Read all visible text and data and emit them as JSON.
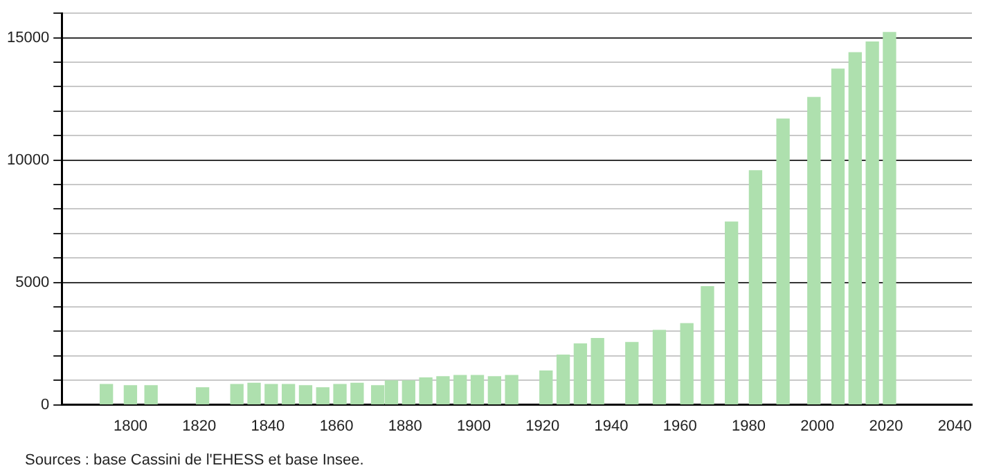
{
  "chart_data": {
    "type": "bar",
    "x": [
      1793,
      1800,
      1806,
      1821,
      1831,
      1836,
      1841,
      1846,
      1851,
      1856,
      1861,
      1866,
      1872,
      1876,
      1881,
      1886,
      1891,
      1896,
      1901,
      1906,
      1911,
      1921,
      1926,
      1931,
      1936,
      1946,
      1954,
      1962,
      1968,
      1975,
      1982,
      1990,
      1999,
      2006,
      2011,
      2016,
      2021
    ],
    "values": [
      830,
      780,
      780,
      700,
      830,
      880,
      830,
      830,
      780,
      700,
      830,
      880,
      780,
      980,
      980,
      1100,
      1150,
      1200,
      1200,
      1150,
      1200,
      1380,
      2030,
      2490,
      2710,
      2550,
      3040,
      3320,
      4830,
      7470,
      9570,
      11680,
      12560,
      13720,
      14390,
      14830,
      15220
    ],
    "color": "#aee0ae",
    "xlim": [
      1780,
      2045
    ],
    "xticks": [
      1800,
      1820,
      1840,
      1860,
      1880,
      1900,
      1920,
      1940,
      1960,
      1980,
      2000,
      2020,
      2040
    ],
    "ylim": [
      0,
      16000
    ],
    "yticks": [
      0,
      {
        "value": 1000,
        "label": null
      },
      {
        "value": 2000,
        "label": null
      },
      {
        "value": 3000,
        "label": null
      },
      {
        "value": 4000,
        "label": null
      },
      5000,
      {
        "value": 6000,
        "label": null
      },
      {
        "value": 7000,
        "label": null
      },
      {
        "value": 8000,
        "label": null
      },
      {
        "value": 9000,
        "label": null
      },
      10000,
      {
        "value": 11000,
        "label": null
      },
      {
        "value": 12000,
        "label": null
      },
      {
        "value": 13000,
        "label": null
      },
      {
        "value": 14000,
        "label": null
      },
      15000,
      {
        "value": 16000,
        "label": null
      }
    ],
    "grid": "y",
    "annotations": [
      "Sources : base Cassini de l'EHESS et base Insee."
    ]
  }
}
